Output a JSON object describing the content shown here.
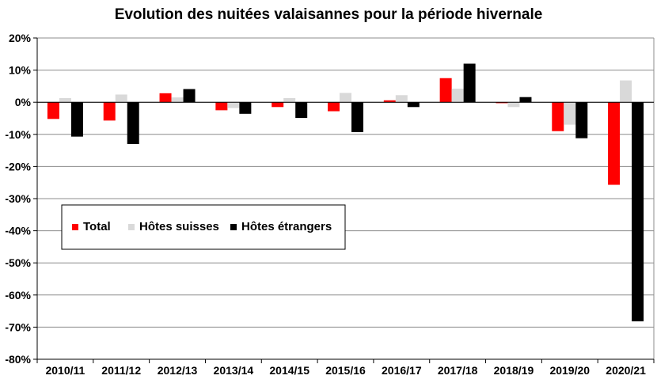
{
  "chart_data": {
    "type": "bar",
    "title": "Evolution des nuitées valaisannes pour la période hivernale",
    "xlabel": "",
    "ylabel": "",
    "categories": [
      "2010/11",
      "2011/12",
      "2012/13",
      "2013/14",
      "2014/15",
      "2015/16",
      "2016/17",
      "2017/18",
      "2018/19",
      "2019/20",
      "2020/21"
    ],
    "series": [
      {
        "name": "Total",
        "color": "#ff0000",
        "values": [
          -5.2,
          -5.7,
          2.8,
          -2.5,
          -1.5,
          -2.8,
          0.6,
          7.5,
          -0.3,
          -9.0,
          -25.7
        ]
      },
      {
        "name": "Hôtes suisses",
        "color": "#d9d9d9",
        "values": [
          1.3,
          2.4,
          1.5,
          -1.8,
          1.3,
          2.9,
          2.2,
          4.2,
          -1.5,
          -7.0,
          6.8
        ]
      },
      {
        "name": "Hôtes étrangers",
        "color": "#000000",
        "values": [
          -10.7,
          -13.0,
          4.1,
          -3.6,
          -4.9,
          -9.3,
          -1.5,
          12.0,
          1.6,
          -11.2,
          -68.2
        ]
      }
    ],
    "ylim": [
      -80,
      20
    ],
    "yticks": [
      20,
      10,
      0,
      -10,
      -20,
      -30,
      -40,
      -50,
      -60,
      -70,
      -80
    ],
    "ytick_labels": [
      "20%",
      "10%",
      "0%",
      "-10%",
      "-20%",
      "-30%",
      "-40%",
      "-50%",
      "-60%",
      "-70%",
      "-80%"
    ],
    "grid": true,
    "legend": "left-middle"
  }
}
